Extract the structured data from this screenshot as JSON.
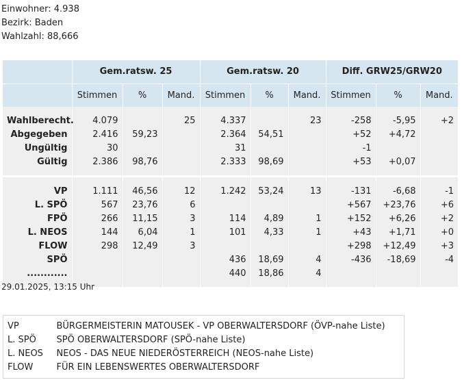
{
  "info": {
    "einwohner": "Einwohner: 4.938",
    "bezirk": "Bezirk: Baden",
    "wahlzahl": "Wahlzahl: 88,666"
  },
  "table": {
    "group_headers": [
      "Gem.ratsw. 25",
      "Gem.ratsw. 20",
      "Diff. GRW25/GRW20"
    ],
    "sub_headers": [
      "Stimmen",
      "%",
      "Mand.",
      "Stimmen",
      "%",
      "Mand.",
      "Stimmen",
      "%",
      "Mand."
    ],
    "summary_rows": [
      [
        "Wahlberecht.",
        "4.079",
        "",
        "25",
        "4.337",
        "",
        "23",
        "-258",
        "-5,95",
        "+2"
      ],
      [
        "Abgegeben",
        "2.416",
        "59,23",
        "",
        "2.364",
        "54,51",
        "",
        "+52",
        "+4,72",
        ""
      ],
      [
        "Ungültig",
        "30",
        "",
        "",
        "31",
        "",
        "",
        "-1",
        "",
        ""
      ],
      [
        "Gültig",
        "2.386",
        "98,76",
        "",
        "2.333",
        "98,69",
        "",
        "+53",
        "+0,07",
        ""
      ]
    ],
    "party_rows": [
      [
        "VP",
        "1.111",
        "46,56",
        "12",
        "1.242",
        "53,24",
        "13",
        "-131",
        "-6,68",
        "-1"
      ],
      [
        "L. SPÖ",
        "567",
        "23,76",
        "6",
        "",
        "",
        "",
        "+567",
        "+23,76",
        "+6"
      ],
      [
        "FPÖ",
        "266",
        "11,15",
        "3",
        "114",
        "4,89",
        "1",
        "+152",
        "+6,26",
        "+2"
      ],
      [
        "L. NEOS",
        "144",
        "6,04",
        "1",
        "101",
        "4,33",
        "1",
        "+43",
        "+1,71",
        "+0"
      ],
      [
        "FLOW",
        "298",
        "12,49",
        "3",
        "",
        "",
        "",
        "+298",
        "+12,49",
        "+3"
      ],
      [
        "SPÖ",
        "",
        "",
        "",
        "436",
        "18,69",
        "4",
        "-436",
        "-18,69",
        "-4"
      ],
      [
        "............",
        "",
        "",
        "",
        "440",
        "18,86",
        "4",
        "",
        "",
        ""
      ]
    ]
  },
  "timestamp": "29.01.2025, 13:15 Uhr",
  "legend": [
    {
      "abbr": "VP",
      "name": "BÜRGERMEISTERIN MATOUSEK - VP OBERWALTERSDORF (ÖVP-nahe Liste)"
    },
    {
      "abbr": "L. SPÖ",
      "name": "SPÖ OBERWALTERSDORF (SPÖ-nahe Liste)"
    },
    {
      "abbr": "L. NEOS",
      "name": "NEOS - DAS NEUE NIEDERÖSTERREICH (NEOS-nahe Liste)"
    },
    {
      "abbr": "FLOW",
      "name": "FÜR EIN LEBENSWERTES OBERWALTERSDORF"
    }
  ]
}
